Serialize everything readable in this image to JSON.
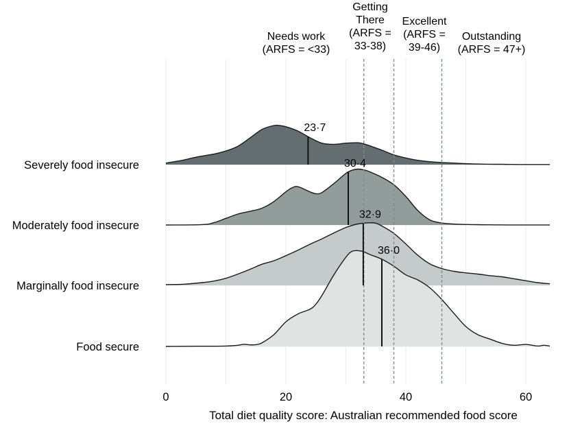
{
  "chart_data": {
    "type": "ridgeline",
    "title": "",
    "xlabel": "Total diet quality score: Australian recommended food score",
    "ylabel": "",
    "xlim": [
      0,
      64
    ],
    "xticks": [
      0,
      20,
      40,
      60
    ],
    "grid": true,
    "series": [
      {
        "name": "Severely food insecure",
        "color": "#646e70",
        "median": 23.7,
        "median_label": "23·7",
        "density_x": [
          0,
          3,
          5,
          8,
          10,
          12,
          14,
          16,
          18,
          19,
          20,
          22,
          24,
          26,
          28,
          30,
          32,
          33,
          34,
          36,
          38,
          40,
          42,
          44,
          46,
          48,
          50,
          52,
          54,
          56,
          58,
          60,
          62,
          64
        ],
        "density_y": [
          0.04,
          0.12,
          0.19,
          0.27,
          0.35,
          0.47,
          0.68,
          0.9,
          1.0,
          1.0,
          0.97,
          0.86,
          0.69,
          0.55,
          0.52,
          0.55,
          0.56,
          0.53,
          0.48,
          0.37,
          0.25,
          0.17,
          0.11,
          0.075,
          0.055,
          0.04,
          0.025,
          0.015,
          0.01,
          0.008,
          0.005,
          0.004,
          0.003,
          0.003
        ]
      },
      {
        "name": "Moderately food insecure",
        "color": "#919c9b",
        "median": 30.4,
        "median_label": "30·4",
        "density_x": [
          0,
          6,
          8,
          10,
          12,
          14,
          16,
          18,
          20,
          21,
          22,
          24,
          25,
          26,
          28,
          30,
          31,
          32,
          33,
          34,
          36,
          38,
          40,
          42,
          44,
          46,
          48,
          50,
          52,
          54,
          56,
          58,
          60,
          62,
          64
        ],
        "density_y": [
          0.0,
          0.01,
          0.06,
          0.17,
          0.28,
          0.35,
          0.43,
          0.6,
          0.85,
          0.95,
          0.98,
          0.85,
          0.8,
          0.83,
          1.06,
          1.32,
          1.4,
          1.43,
          1.41,
          1.36,
          1.22,
          1.03,
          0.73,
          0.37,
          0.13,
          0.05,
          0.025,
          0.014,
          0.008,
          0.005,
          0.003,
          0.002,
          0.002,
          0.001,
          0.001
        ]
      },
      {
        "name": "Marginally food insecure",
        "color": "#c5cbca",
        "median": 32.9,
        "median_label": "32·9",
        "density_x": [
          0,
          3,
          6,
          8,
          10,
          12,
          14,
          16,
          18,
          20,
          22,
          24,
          26,
          28,
          30,
          32,
          34,
          35,
          36,
          38,
          40,
          42,
          44,
          46,
          48,
          50,
          52,
          54,
          56,
          58,
          60,
          62,
          64
        ],
        "density_y": [
          0.02,
          0.03,
          0.07,
          0.11,
          0.18,
          0.29,
          0.41,
          0.54,
          0.63,
          0.76,
          0.9,
          1.05,
          1.19,
          1.34,
          1.48,
          1.57,
          1.6,
          1.59,
          1.52,
          1.33,
          1.06,
          0.77,
          0.55,
          0.43,
          0.36,
          0.32,
          0.29,
          0.25,
          0.22,
          0.17,
          0.12,
          0.07,
          0.04
        ]
      },
      {
        "name": "Food secure",
        "color": "#dfe3e2",
        "median": 36.0,
        "median_label": "36·0",
        "density_x": [
          0,
          5,
          10,
          12,
          13,
          14,
          15,
          16,
          18,
          20,
          22,
          24,
          25,
          26,
          28,
          30,
          31,
          32,
          33,
          34,
          36,
          38,
          40,
          42,
          44,
          46,
          48,
          50,
          52,
          54,
          56,
          58,
          60,
          62,
          63,
          64
        ],
        "density_y": [
          0.0,
          0.005,
          0.01,
          0.03,
          0.055,
          0.04,
          0.045,
          0.09,
          0.3,
          0.63,
          0.83,
          0.95,
          1.08,
          1.3,
          1.83,
          2.28,
          2.43,
          2.45,
          2.42,
          2.35,
          2.23,
          2.05,
          1.83,
          1.7,
          1.5,
          1.2,
          0.85,
          0.51,
          0.3,
          0.19,
          0.08,
          0.03,
          0.05,
          0.01,
          0.03,
          0.01
        ]
      }
    ],
    "thresholds": [
      {
        "value": 33,
        "linestyle": "dashed",
        "color": "#7f8e91"
      },
      {
        "value": 38,
        "linestyle": "dashed",
        "color": "#7f8e91"
      },
      {
        "value": 46,
        "linestyle": "dashed",
        "color": "#7f8e91"
      }
    ],
    "category_labels": [
      {
        "lines": [
          "Needs work",
          "(ARFS = <33)"
        ]
      },
      {
        "lines": [
          "Getting",
          "There",
          "(ARFS =",
          "33-38)"
        ]
      },
      {
        "lines": [
          "Excellent",
          "(ARFS =",
          "39-46)"
        ]
      },
      {
        "lines": [
          "Outstanding",
          "(ARFS = 47+)"
        ]
      }
    ]
  }
}
